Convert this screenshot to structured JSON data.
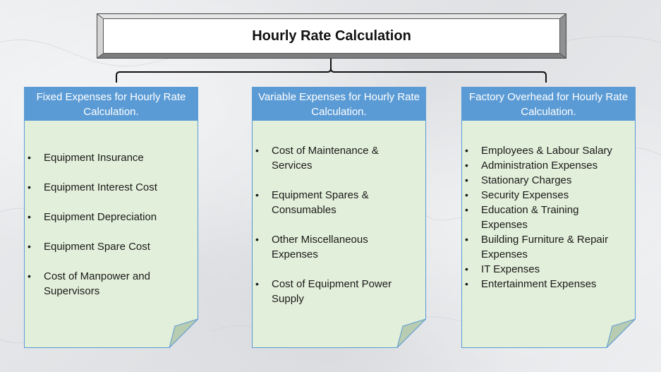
{
  "title": "Hourly Rate Calculation",
  "cards": [
    {
      "header": "Fixed Expenses for Hourly Rate Calculation.",
      "items": [
        "Equipment Insurance",
        "Equipment Interest Cost",
        "Equipment Depreciation",
        "Equipment Spare Cost",
        "Cost of Manpower and Supervisors"
      ]
    },
    {
      "header": "Variable Expenses for Hourly Rate Calculation.",
      "items": [
        "Cost of Maintenance & Services",
        "Equipment Spares & Consumables",
        "Other Miscellaneous Expenses",
        "Cost of Equipment Power Supply"
      ]
    },
    {
      "header": "Factory Overhead for Hourly Rate Calculation.",
      "items": [
        "Employees & Labour Salary",
        "Administration Expenses",
        "Stationary Charges",
        "Security Expenses",
        "Education & Training Expenses",
        "Building Furniture & Repair Expenses",
        "IT Expenses",
        "Entertainment Expenses"
      ]
    }
  ],
  "colors": {
    "header_fill": "#5b9bd5",
    "card_fill": "#e2efda",
    "card_border": "#5b9bd5",
    "page_fold": "#b7ccb0"
  }
}
